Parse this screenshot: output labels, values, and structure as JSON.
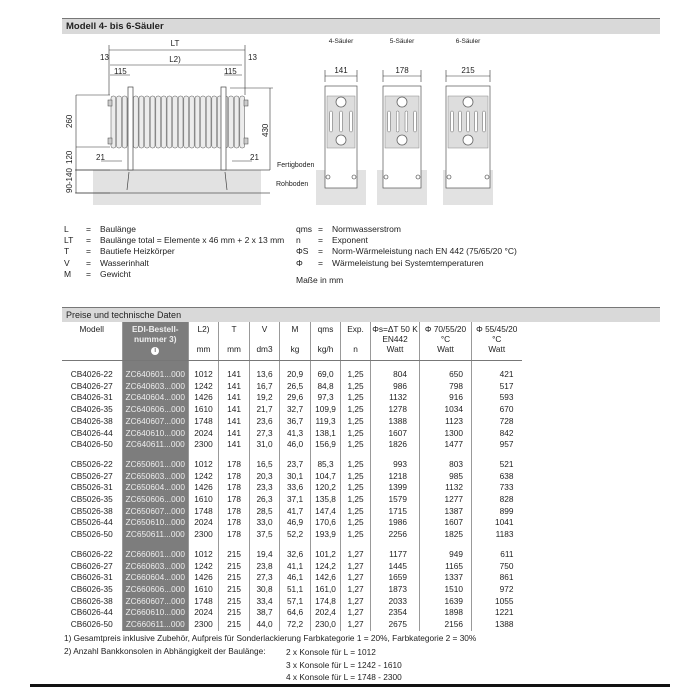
{
  "section_title": "Modell 4- bis 6-Säuler",
  "drawing": {
    "lt_label": "LT",
    "l_label": "L",
    "l_sup": "2)",
    "dims": {
      "offset": "13",
      "bracket": "115",
      "height": "260",
      "total_height": "430",
      "floor_gap": "120",
      "floor": "90-140",
      "pipe": "21"
    },
    "floor_labels": {
      "finished": "Fertigboden",
      "raw": "Rohboden"
    },
    "side_views": [
      {
        "label": "4-Säuler",
        "depth": "141"
      },
      {
        "label": "5-Säuler",
        "depth": "178"
      },
      {
        "label": "6-Säuler",
        "depth": "215"
      }
    ]
  },
  "legend": {
    "left": [
      {
        "sym": "L",
        "text": "Baulänge"
      },
      {
        "sym": "LT",
        "text": "Baulänge total = Elemente x 46 mm + 2 x 13 mm"
      },
      {
        "sym": "T",
        "text": "Bautiefe Heizkörper"
      },
      {
        "sym": "V",
        "text": "Wasserinhalt"
      },
      {
        "sym": "M",
        "text": "Gewicht"
      }
    ],
    "right": [
      {
        "sym": "qms",
        "text": "Normwasserstrom"
      },
      {
        "sym": "n",
        "text": "Exponent"
      },
      {
        "sym": "ΦS",
        "text": "Norm-Wärmeleistung nach EN 442 (75/65/20 °C)"
      },
      {
        "sym": "Φ",
        "text": "Wärmeleistung bei Systemtemperaturen"
      }
    ],
    "units_note": "Maße in mm"
  },
  "table": {
    "title": "Preise und technische Daten",
    "headers": [
      {
        "label": "Modell",
        "unit": ""
      },
      {
        "label": "EDI-Bestell-nummer 3)",
        "unit": "i"
      },
      {
        "label": "L2)",
        "unit": "mm"
      },
      {
        "label": "T",
        "unit": "mm"
      },
      {
        "label": "V",
        "unit": "dm3"
      },
      {
        "label": "M",
        "unit": "kg"
      },
      {
        "label": "qms",
        "unit": "kg/h"
      },
      {
        "label": "Exp.",
        "unit": "n"
      },
      {
        "label": "Φs=ΔT 50 K EN442",
        "unit": "Watt"
      },
      {
        "label": "Φ 70/55/20 °C",
        "unit": "Watt"
      },
      {
        "label": "Φ 55/45/20 °C",
        "unit": "Watt"
      }
    ],
    "groups": [
      [
        [
          "CB4026-22",
          "ZC640601...000",
          "1012",
          "141",
          "13,6",
          "20,9",
          "69,0",
          "1,25",
          "804",
          "650",
          "421"
        ],
        [
          "CB4026-27",
          "ZC640603...000",
          "1242",
          "141",
          "16,7",
          "26,5",
          "84,8",
          "1,25",
          "986",
          "798",
          "517"
        ],
        [
          "CB4026-31",
          "ZC640604...000",
          "1426",
          "141",
          "19,2",
          "29,6",
          "97,3",
          "1,25",
          "1132",
          "916",
          "593"
        ],
        [
          "CB4026-35",
          "ZC640606...000",
          "1610",
          "141",
          "21,7",
          "32,7",
          "109,9",
          "1,25",
          "1278",
          "1034",
          "670"
        ],
        [
          "CB4026-38",
          "ZC640607...000",
          "1748",
          "141",
          "23,6",
          "36,7",
          "119,3",
          "1,25",
          "1388",
          "1123",
          "728"
        ],
        [
          "CB4026-44",
          "ZC640610...000",
          "2024",
          "141",
          "27,3",
          "41,3",
          "138,1",
          "1,25",
          "1607",
          "1300",
          "842"
        ],
        [
          "CB4026-50",
          "ZC640611...000",
          "2300",
          "141",
          "31,0",
          "46,0",
          "156,9",
          "1,25",
          "1826",
          "1477",
          "957"
        ]
      ],
      [
        [
          "CB5026-22",
          "ZC650601...000",
          "1012",
          "178",
          "16,5",
          "23,7",
          "85,3",
          "1,25",
          "993",
          "803",
          "521"
        ],
        [
          "CB5026-27",
          "ZC650603...000",
          "1242",
          "178",
          "20,3",
          "30,1",
          "104,7",
          "1,25",
          "1218",
          "985",
          "638"
        ],
        [
          "CB5026-31",
          "ZC650604...000",
          "1426",
          "178",
          "23,3",
          "33,6",
          "120,2",
          "1,25",
          "1399",
          "1132",
          "733"
        ],
        [
          "CB5026-35",
          "ZC650606...000",
          "1610",
          "178",
          "26,3",
          "37,1",
          "135,8",
          "1,25",
          "1579",
          "1277",
          "828"
        ],
        [
          "CB5026-38",
          "ZC650607...000",
          "1748",
          "178",
          "28,5",
          "41,7",
          "147,4",
          "1,25",
          "1715",
          "1387",
          "899"
        ],
        [
          "CB5026-44",
          "ZC650610...000",
          "2024",
          "178",
          "33,0",
          "46,9",
          "170,6",
          "1,25",
          "1986",
          "1607",
          "1041"
        ],
        [
          "CB5026-50",
          "ZC650611...000",
          "2300",
          "178",
          "37,5",
          "52,2",
          "193,9",
          "1,25",
          "2256",
          "1825",
          "1183"
        ]
      ],
      [
        [
          "CB6026-22",
          "ZC660601...000",
          "1012",
          "215",
          "19,4",
          "32,6",
          "101,2",
          "1,27",
          "1177",
          "949",
          "611"
        ],
        [
          "CB6026-27",
          "ZC660603...000",
          "1242",
          "215",
          "23,8",
          "41,1",
          "124,2",
          "1,27",
          "1445",
          "1165",
          "750"
        ],
        [
          "CB6026-31",
          "ZC660604...000",
          "1426",
          "215",
          "27,3",
          "46,1",
          "142,6",
          "1,27",
          "1659",
          "1337",
          "861"
        ],
        [
          "CB6026-35",
          "ZC660606...000",
          "1610",
          "215",
          "30,8",
          "51,1",
          "161,0",
          "1,27",
          "1873",
          "1510",
          "972"
        ],
        [
          "CB6026-38",
          "ZC660607...000",
          "1748",
          "215",
          "33,4",
          "57,1",
          "174,8",
          "1,27",
          "2033",
          "1639",
          "1055"
        ],
        [
          "CB6026-44",
          "ZC660610...000",
          "2024",
          "215",
          "38,7",
          "64,6",
          "202,4",
          "1,27",
          "2354",
          "1898",
          "1221"
        ],
        [
          "CB6026-50",
          "ZC660611...000",
          "2300",
          "215",
          "44,0",
          "72,2",
          "230,0",
          "1,27",
          "2675",
          "2156",
          "1388"
        ]
      ]
    ]
  },
  "footnotes": {
    "f1": "1) Gesamtpreis inklusive Zubehör, Aufpreis für Sonderlackierung Farbkategorie 1 = 20%, Farbkategorie 2 = 30%",
    "f2": "2) Anzahl Bankkonsolen in Abhängigkeit der Baulänge:",
    "f2_items": [
      "2 x Konsole für L = 1012",
      "3 x Konsole für L = 1242 - 1610",
      "4 x Konsole für L = 1748 - 2300"
    ]
  }
}
